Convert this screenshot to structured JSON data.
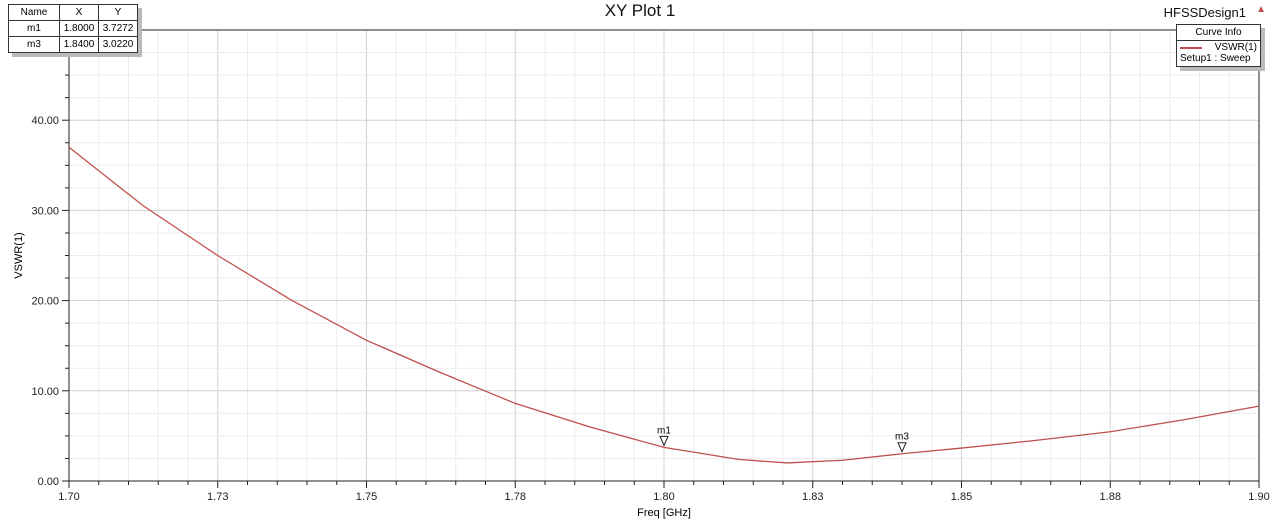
{
  "design_name": "HFSSDesign1",
  "marker_table": {
    "headers": [
      "Name",
      "X",
      "Y"
    ],
    "rows": [
      [
        "m1",
        "1.8000",
        "3.7272"
      ],
      [
        "m3",
        "1.8400",
        "3.0220"
      ]
    ]
  },
  "legend": {
    "title": "Curve Info",
    "series": "VSWR(1)",
    "setup": "Setup1 : Sweep"
  },
  "chart_data": {
    "type": "line",
    "title": "XY Plot 1",
    "xlabel": "Freq [GHz]",
    "ylabel": "VSWR(1)",
    "xlim": [
      1.7,
      1.9
    ],
    "ylim": [
      0,
      50
    ],
    "grid": true,
    "legend_position": "top-right",
    "x_tick_labels": [
      "1.70",
      "1.73",
      "1.75",
      "1.78",
      "1.80",
      "1.83",
      "1.85",
      "1.88",
      "1.90"
    ],
    "y_tick_labels": [
      "0.00",
      "10.00",
      "20.00",
      "30.00",
      "40.00"
    ],
    "series": [
      {
        "name": "VSWR(1)",
        "color": "#c0504d",
        "x": [
          1.7,
          1.7125,
          1.725,
          1.7375,
          1.75,
          1.7625,
          1.775,
          1.7875,
          1.8,
          1.8125,
          1.8207,
          1.83,
          1.84,
          1.85,
          1.8625,
          1.875,
          1.8875,
          1.9
        ],
        "y": [
          37.0,
          30.5,
          25.0,
          20.0,
          15.6,
          12.0,
          8.6,
          6.0,
          3.73,
          2.4,
          2.0,
          2.3,
          3.02,
          3.65,
          4.5,
          5.46,
          6.8,
          8.3
        ]
      }
    ],
    "markers": [
      {
        "name": "m1",
        "x": 1.8,
        "y": 3.7272
      },
      {
        "name": "m3",
        "x": 1.84,
        "y": 3.022
      }
    ]
  }
}
